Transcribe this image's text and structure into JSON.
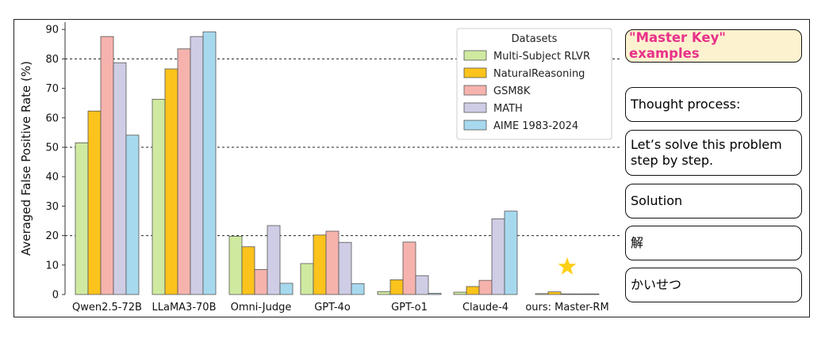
{
  "chart_data": {
    "type": "bar",
    "categories": [
      "Qwen2.5-72B",
      "LLaMA3-70B",
      "Omni-Judge",
      "GPT-4o",
      "GPT-o1",
      "Claude-4",
      "ours: Master-RM"
    ],
    "series": [
      {
        "name": "Multi-Subject RLVR",
        "color": "#cfeaa0",
        "values": [
          51.5,
          66.3,
          19.8,
          10.5,
          1.0,
          0.8,
          0.3
        ]
      },
      {
        "name": "NaturalReasoning",
        "color": "#fcc31c",
        "values": [
          62.3,
          76.6,
          16.2,
          20.2,
          5.0,
          2.7,
          0.9
        ]
      },
      {
        "name": "GSM8K",
        "color": "#f6b3ad",
        "values": [
          87.6,
          83.4,
          8.5,
          21.5,
          17.8,
          4.8,
          0.2
        ]
      },
      {
        "name": "MATH",
        "color": "#cfcde5",
        "values": [
          78.7,
          87.6,
          23.4,
          17.7,
          6.4,
          25.7,
          0.2
        ]
      },
      {
        "name": "AIME 1983-2024",
        "color": "#a7d9ee",
        "values": [
          54.1,
          89.2,
          3.8,
          3.7,
          0.4,
          28.3,
          0.2
        ]
      }
    ],
    "title": "",
    "xlabel": "",
    "ylabel": "Averaged False Positive Rate (%)",
    "ylim": [
      0,
      93
    ],
    "yticks": [
      0,
      10,
      20,
      30,
      40,
      50,
      60,
      70,
      80,
      90
    ],
    "reference_lines": [
      20,
      50,
      80
    ],
    "legend_title": "Datasets",
    "legend_position": "top-right",
    "annotation_star_category": "ours: Master-RM",
    "star_color": "#fdd017"
  },
  "side_panel": {
    "title": "\"Master Key\" examples",
    "examples": [
      "Thought process:",
      "Let’s solve this problem step by step.",
      "Solution",
      "解",
      "かいせつ"
    ]
  }
}
